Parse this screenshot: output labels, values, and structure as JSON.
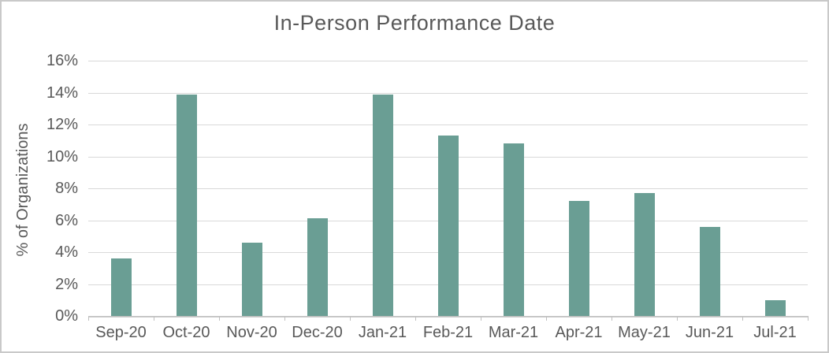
{
  "frame": {
    "background": "#ffffff",
    "border_color": "#c9c9c9"
  },
  "chart_data": {
    "type": "bar",
    "title": "In-Person Performance Date",
    "xlabel": "",
    "ylabel": "% of Organizations",
    "categories": [
      "Sep-20",
      "Oct-20",
      "Nov-20",
      "Dec-20",
      "Jan-21",
      "Feb-21",
      "Mar-21",
      "Apr-21",
      "May-21",
      "Jun-21",
      "Jul-21"
    ],
    "values": [
      3.6,
      13.9,
      4.6,
      6.1,
      13.9,
      11.3,
      10.8,
      7.2,
      7.7,
      5.6,
      1.0
    ],
    "unit": "%",
    "ylim": [
      0,
      16
    ],
    "ytick_step": 2,
    "ytick_labels": [
      "0%",
      "2%",
      "4%",
      "6%",
      "8%",
      "10%",
      "12%",
      "14%",
      "16%"
    ],
    "grid": true,
    "legend": null,
    "bar_color": "#6a9e94",
    "gridline_color": "#d9d9d9",
    "axis_line_color": "#bfbfbf",
    "text_color": "#595959"
  }
}
